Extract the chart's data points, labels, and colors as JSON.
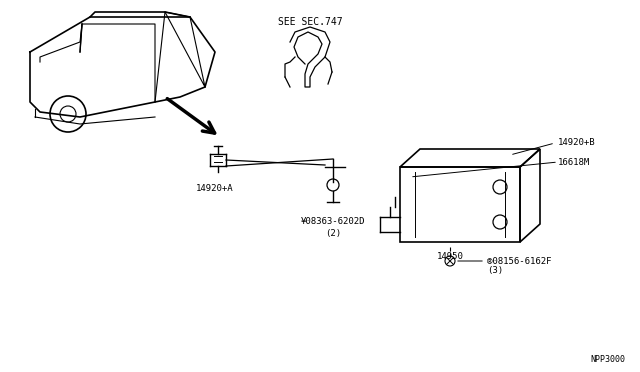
{
  "bg_color": "#ffffff",
  "line_color": "#000000",
  "text_color": "#000000",
  "fig_width": 6.4,
  "fig_height": 3.72,
  "dpi": 100,
  "labels": {
    "see_sec": "SEE SEC.747",
    "part_14920A": "14920+A",
    "part_14920B": "14920+B",
    "part_16618M": "16618M",
    "part_08363": "¥08363-6202D",
    "part_08363_sub": "(2)",
    "part_14950": "14950",
    "part_08156": "®08156-6162F",
    "part_08156_sub": "(3)",
    "part_code": "NPP3000"
  }
}
